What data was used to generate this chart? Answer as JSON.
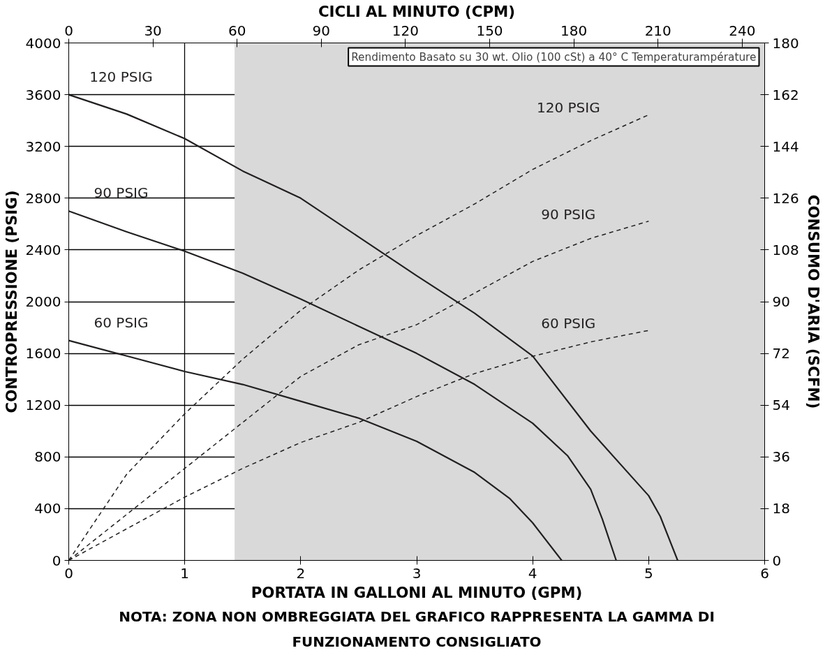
{
  "chart_data": {
    "type": "line",
    "xlabel": "PORTATA IN GALLONI AL MINUTO (GPM)",
    "ylabel": "CONTROPRESSIONE (PSIG)",
    "y2label": "CONSUMO D'ARIA (SCFM)",
    "x2label": "CICLI AL MINUTO (CPM)",
    "xlim": [
      0,
      6
    ],
    "xticks": [
      0,
      1,
      2,
      3,
      4,
      5,
      6
    ],
    "ylim": [
      0,
      4000
    ],
    "yticks": [
      0,
      400,
      800,
      1200,
      1600,
      2000,
      2400,
      2800,
      3200,
      3600,
      4000
    ],
    "y2lim": [
      0,
      180
    ],
    "y2ticks": [
      0,
      18,
      36,
      54,
      72,
      90,
      108,
      126,
      144,
      162,
      180
    ],
    "x2lim": [
      0,
      248
    ],
    "x2ticks": [
      0,
      30,
      60,
      90,
      120,
      150,
      180,
      210,
      240
    ],
    "grid": true,
    "marker": "none",
    "bands": [
      {
        "axis": "x",
        "from": 1.43,
        "to": 6,
        "color": "#d9d9d9"
      }
    ],
    "series": [
      {
        "name": "120 PSIG",
        "color": "#231f20",
        "line_style": "solid",
        "x": [
          0,
          0.5,
          1,
          1.5,
          2,
          2.5,
          3,
          3.5,
          4,
          4.5,
          5,
          5.1,
          5.25
        ],
        "values": [
          3600,
          3450,
          3260,
          3010,
          2800,
          2500,
          2200,
          1910,
          1580,
          1000,
          500,
          340,
          0
        ]
      },
      {
        "name": "90 PSIG",
        "color": "#231f20",
        "line_style": "solid",
        "x": [
          0,
          0.5,
          1,
          1.5,
          2,
          2.5,
          3,
          3.5,
          4,
          4.3,
          4.5,
          4.6,
          4.72
        ],
        "values": [
          2700,
          2540,
          2390,
          2220,
          2020,
          1810,
          1600,
          1360,
          1060,
          810,
          550,
          320,
          0
        ]
      },
      {
        "name": "60 PSIG",
        "color": "#231f20",
        "line_style": "solid",
        "x": [
          0,
          0.5,
          1,
          1.5,
          2,
          2.5,
          3,
          3.5,
          3.8,
          4,
          4.25
        ],
        "values": [
          1700,
          1580,
          1460,
          1360,
          1230,
          1100,
          920,
          680,
          480,
          290,
          0
        ]
      },
      {
        "name": "120 PSIG",
        "color": "#231f20",
        "line_style": "dashed",
        "axis": "y2",
        "x": [
          0,
          0.5,
          1,
          1.5,
          2,
          2.5,
          3,
          3.5,
          4,
          4.5,
          5
        ],
        "values": [
          0,
          30,
          51,
          70,
          87,
          101,
          113,
          124,
          136,
          146,
          155
        ]
      },
      {
        "name": "90 PSIG",
        "color": "#231f20",
        "line_style": "dashed",
        "axis": "y2",
        "x": [
          0,
          0.5,
          1,
          1.5,
          2,
          2.5,
          3,
          3.5,
          4,
          4.5,
          5
        ],
        "values": [
          0,
          16,
          32,
          48,
          64,
          75,
          82,
          93,
          104,
          112,
          118
        ]
      },
      {
        "name": "60 PSIG",
        "color": "#231f20",
        "line_style": "dashed",
        "axis": "y2",
        "x": [
          0,
          0.5,
          1,
          1.5,
          2,
          2.5,
          3,
          3.5,
          4,
          4.5,
          5
        ],
        "values": [
          0,
          11,
          22,
          32,
          41,
          48,
          57,
          65,
          71,
          76,
          80
        ]
      }
    ],
    "annotations": [
      "Rendimento Basato su 30 wt. Olio (100 cSt) a 40° C Temperaturampérature",
      "NOTA: ZONA NON OMBREGGIATA DEL GRAFICO RAPPRESENTA LA GAMMA DI FUNZIONAMENTO CONSIGLIATO"
    ]
  }
}
